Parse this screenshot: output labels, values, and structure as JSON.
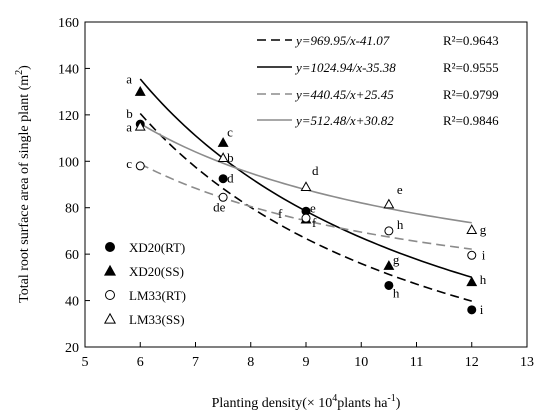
{
  "chart_data": {
    "type": "scatter",
    "xlabel_main": "Planting density(× 10",
    "xlabel_sup": "4",
    "xlabel_rest": "plants ha",
    "xlabel_sup2": "-1",
    "xlabel_end": ")",
    "ylabel_main": "Total root surface area of single plant  (m",
    "ylabel_sup": "2",
    "ylabel_end": ")",
    "xlim": [
      5,
      13
    ],
    "ylim": [
      20,
      160
    ],
    "xticks": [
      "5",
      "6",
      "7",
      "8",
      "9",
      "10",
      "11",
      "12",
      "13"
    ],
    "yticks": [
      "20",
      "40",
      "60",
      "80",
      "100",
      "120",
      "140",
      "160"
    ],
    "x": [
      6,
      7.5,
      9,
      10.5,
      12
    ],
    "series": [
      {
        "name": "XD20(RT)",
        "marker": "filled-circle",
        "values": [
          116,
          92.5,
          78.5,
          46.5,
          36
        ],
        "letters": [
          "b",
          "d",
          "f",
          "h",
          "i"
        ],
        "curve": {
          "a": 969.95,
          "b": -41.07,
          "style": "dashed",
          "color": "#000000"
        },
        "equation": "y=969.95/x-41.07",
        "r2": "R²=0.9643"
      },
      {
        "name": "XD20(SS)",
        "marker": "filled-triangle",
        "values": [
          130,
          108,
          75,
          55,
          48
        ],
        "letters": [
          "a",
          "c",
          "e",
          "g",
          "h"
        ],
        "curve": {
          "a": 1024.94,
          "b": -35.38,
          "style": "solid",
          "color": "#000000"
        },
        "equation": "y=1024.94/x-35.38",
        "r2": "R²=0.9555"
      },
      {
        "name": "LM33(RT)",
        "marker": "open-circle",
        "values": [
          98,
          84.5,
          75.5,
          70,
          59.5
        ],
        "letters": [
          "c",
          "de",
          "f",
          "h",
          "i"
        ],
        "curve": {
          "a": 440.45,
          "b": 25.45,
          "style": "dashed",
          "color": "#8c8c8c"
        },
        "equation": "y=440.45/x+25.45",
        "r2": "R²=0.9799"
      },
      {
        "name": "LM33(SS)",
        "marker": "open-triangle",
        "values": [
          115,
          101.5,
          89,
          81.5,
          70.5
        ],
        "letters": [
          "a",
          "b",
          "d",
          "e",
          "g"
        ],
        "curve": {
          "a": 512.48,
          "b": 30.82,
          "style": "solid",
          "color": "#8c8c8c"
        },
        "equation": "y=512.48/x+30.82",
        "r2": "R²=0.9846"
      }
    ],
    "legend_placement": "bottom-left",
    "equations_placement": "top-right",
    "grid": false
  }
}
